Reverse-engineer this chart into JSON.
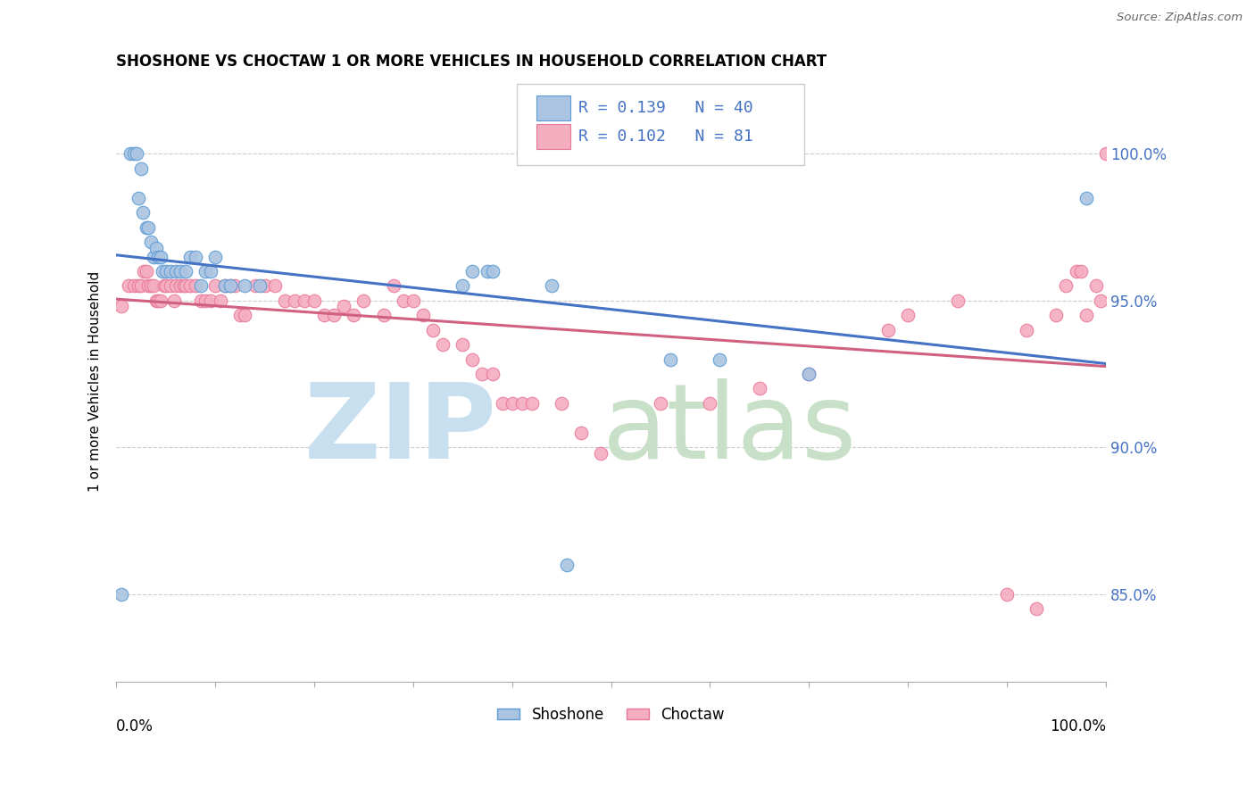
{
  "title": "SHOSHONE VS CHOCTAW 1 OR MORE VEHICLES IN HOUSEHOLD CORRELATION CHART",
  "source": "Source: ZipAtlas.com",
  "ylabel": "1 or more Vehicles in Household",
  "shoshone_R": 0.139,
  "shoshone_N": 40,
  "choctaw_R": 0.102,
  "choctaw_N": 81,
  "shoshone_color": "#aac4e2",
  "choctaw_color": "#f5adc0",
  "shoshone_edge_color": "#5b9bd5",
  "choctaw_edge_color": "#e8789a",
  "shoshone_line_color": "#4472c4",
  "choctaw_line_color": "#d06080",
  "ytick_values": [
    85.0,
    90.0,
    95.0,
    100.0
  ],
  "ytick_labels": [
    "85.0%",
    "90.0%",
    "95.0%",
    "100.0%"
  ],
  "ymin": 82.0,
  "ymax": 102.5,
  "xmin": 0.0,
  "xmax": 1.0,
  "shoshone_x": [
    0.005,
    0.014,
    0.018,
    0.02,
    0.022,
    0.025,
    0.027,
    0.03,
    0.032,
    0.035,
    0.038,
    0.04,
    0.042,
    0.045,
    0.047,
    0.05,
    0.055,
    0.06,
    0.065,
    0.07,
    0.075,
    0.08,
    0.085,
    0.09,
    0.095,
    0.1,
    0.11,
    0.115,
    0.13,
    0.145,
    0.35,
    0.36,
    0.375,
    0.38,
    0.44,
    0.455,
    0.56,
    0.61,
    0.7,
    0.98
  ],
  "shoshone_y": [
    85.0,
    100.0,
    100.0,
    100.0,
    98.5,
    99.5,
    98.0,
    97.5,
    97.5,
    97.0,
    96.5,
    96.8,
    96.5,
    96.5,
    96.0,
    96.0,
    96.0,
    96.0,
    96.0,
    96.0,
    96.5,
    96.5,
    95.5,
    96.0,
    96.0,
    96.5,
    95.5,
    95.5,
    95.5,
    95.5,
    95.5,
    96.0,
    96.0,
    96.0,
    95.5,
    86.0,
    93.0,
    93.0,
    92.5,
    98.5
  ],
  "choctaw_x": [
    0.005,
    0.012,
    0.018,
    0.022,
    0.025,
    0.028,
    0.03,
    0.032,
    0.035,
    0.038,
    0.04,
    0.042,
    0.045,
    0.048,
    0.05,
    0.055,
    0.058,
    0.06,
    0.065,
    0.068,
    0.07,
    0.075,
    0.08,
    0.085,
    0.09,
    0.095,
    0.1,
    0.105,
    0.11,
    0.115,
    0.12,
    0.125,
    0.13,
    0.14,
    0.15,
    0.16,
    0.17,
    0.18,
    0.19,
    0.2,
    0.21,
    0.22,
    0.23,
    0.24,
    0.25,
    0.27,
    0.28,
    0.29,
    0.3,
    0.31,
    0.32,
    0.33,
    0.35,
    0.36,
    0.37,
    0.38,
    0.39,
    0.4,
    0.41,
    0.42,
    0.45,
    0.47,
    0.49,
    0.55,
    0.6,
    0.65,
    0.7,
    0.78,
    0.8,
    0.85,
    0.9,
    0.92,
    0.93,
    0.95,
    0.96,
    0.97,
    0.975,
    0.98,
    0.99,
    0.995,
    1.0
  ],
  "choctaw_y": [
    94.8,
    95.5,
    95.5,
    95.5,
    95.5,
    96.0,
    96.0,
    95.5,
    95.5,
    95.5,
    95.0,
    95.0,
    95.0,
    95.5,
    95.5,
    95.5,
    95.0,
    95.5,
    95.5,
    95.5,
    95.5,
    95.5,
    95.5,
    95.0,
    95.0,
    95.0,
    95.5,
    95.0,
    95.5,
    95.5,
    95.5,
    94.5,
    94.5,
    95.5,
    95.5,
    95.5,
    95.0,
    95.0,
    95.0,
    95.0,
    94.5,
    94.5,
    94.8,
    94.5,
    95.0,
    94.5,
    95.5,
    95.0,
    95.0,
    94.5,
    94.0,
    93.5,
    93.5,
    93.0,
    92.5,
    92.5,
    91.5,
    91.5,
    91.5,
    91.5,
    91.5,
    90.5,
    89.8,
    91.5,
    91.5,
    92.0,
    92.5,
    94.0,
    94.5,
    95.0,
    85.0,
    94.0,
    84.5,
    94.5,
    95.5,
    96.0,
    96.0,
    94.5,
    95.5,
    95.0,
    100.0
  ],
  "watermark_zip_color": "#c8dff0",
  "watermark_atlas_color": "#c8dfc8"
}
